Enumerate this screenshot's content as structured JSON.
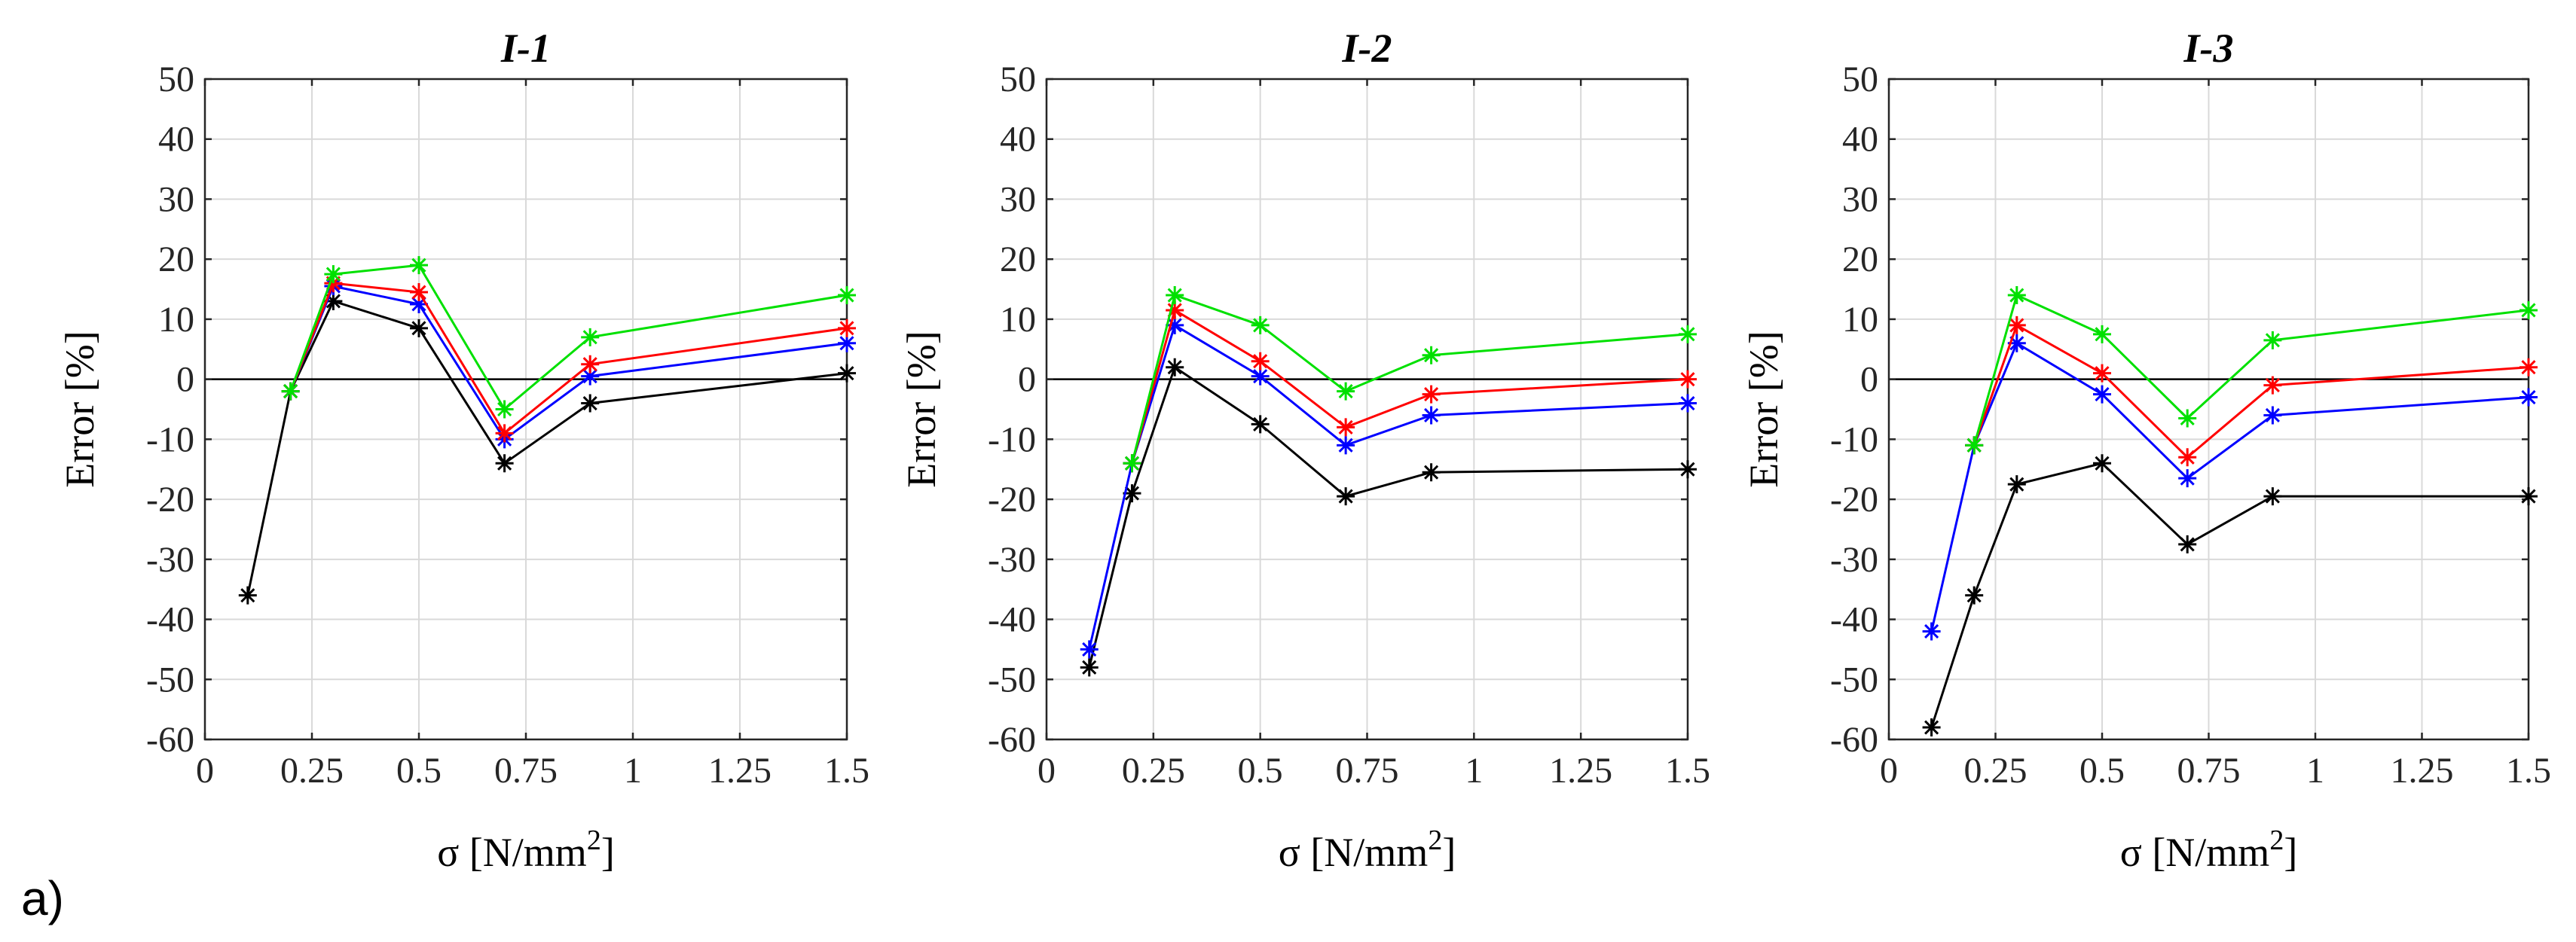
{
  "figure_label": "a)",
  "chart_data": [
    {
      "type": "line",
      "title": "I-1",
      "xlabel": "σ [N/mm",
      "xlabel_sup": "2",
      "xlabel_end": "]",
      "ylabel": "Error [%]",
      "xlim": [
        0,
        1.5
      ],
      "ylim": [
        -60,
        50
      ],
      "xticks": [
        0,
        0.25,
        0.5,
        0.75,
        1,
        1.25,
        1.5
      ],
      "xtick_labels": [
        "0",
        "0.25",
        "0.5",
        "0.75",
        "1",
        "1.25",
        "1.5"
      ],
      "yticks": [
        -60,
        -50,
        -40,
        -30,
        -20,
        -10,
        0,
        10,
        20,
        30,
        40,
        50
      ],
      "grid": true,
      "series": [
        {
          "name": "black",
          "color": "#000000",
          "x": [
            0.1,
            0.2,
            0.3,
            0.5,
            0.7,
            0.9,
            1.5
          ],
          "values": [
            -36,
            -2,
            13,
            8.5,
            -14,
            -4,
            1
          ]
        },
        {
          "name": "blue",
          "color": "#0000ff",
          "x": [
            0.2,
            0.3,
            0.5,
            0.7,
            0.9,
            1.5
          ],
          "values": [
            -2,
            15.5,
            12.5,
            -10,
            0.5,
            6
          ]
        },
        {
          "name": "red",
          "color": "#ff0000",
          "x": [
            0.2,
            0.3,
            0.5,
            0.7,
            0.9,
            1.5
          ],
          "values": [
            -2,
            16,
            14.5,
            -9,
            2.5,
            8.5
          ]
        },
        {
          "name": "green",
          "color": "#00e000",
          "x": [
            0.2,
            0.3,
            0.5,
            0.7,
            0.9,
            1.5
          ],
          "values": [
            -2,
            17.5,
            19,
            -5,
            7,
            14
          ]
        }
      ]
    },
    {
      "type": "line",
      "title": "I-2",
      "xlabel": "σ [N/mm",
      "xlabel_sup": "2",
      "xlabel_end": "]",
      "ylabel": "Error [%]",
      "xlim": [
        0,
        1.5
      ],
      "ylim": [
        -60,
        50
      ],
      "xticks": [
        0,
        0.25,
        0.5,
        0.75,
        1,
        1.25,
        1.5
      ],
      "xtick_labels": [
        "0",
        "0.25",
        "0.5",
        "0.75",
        "1",
        "1.25",
        "1.5"
      ],
      "yticks": [
        -60,
        -50,
        -40,
        -30,
        -20,
        -10,
        0,
        10,
        20,
        30,
        40,
        50
      ],
      "grid": true,
      "series": [
        {
          "name": "black",
          "color": "#000000",
          "x": [
            0.1,
            0.2,
            0.3,
            0.5,
            0.7,
            0.9,
            1.5
          ],
          "values": [
            -48,
            -19,
            2,
            -7.5,
            -19.5,
            -15.5,
            -15
          ]
        },
        {
          "name": "blue",
          "color": "#0000ff",
          "x": [
            0.1,
            0.2,
            0.3,
            0.5,
            0.7,
            0.9,
            1.5
          ],
          "values": [
            -45,
            -14,
            9,
            0.5,
            -11,
            -6,
            -4
          ]
        },
        {
          "name": "red",
          "color": "#ff0000",
          "x": [
            0.2,
            0.3,
            0.5,
            0.7,
            0.9,
            1.5
          ],
          "values": [
            -14,
            11.5,
            3,
            -8,
            -2.5,
            0
          ]
        },
        {
          "name": "green",
          "color": "#00e000",
          "x": [
            0.2,
            0.3,
            0.5,
            0.7,
            0.9,
            1.5
          ],
          "values": [
            -14,
            14,
            9,
            -2,
            4,
            7.5
          ]
        }
      ]
    },
    {
      "type": "line",
      "title": "I-3",
      "xlabel": "σ [N/mm",
      "xlabel_sup": "2",
      "xlabel_end": "]",
      "ylabel": "Error [%]",
      "xlim": [
        0,
        1.5
      ],
      "ylim": [
        -60,
        50
      ],
      "xticks": [
        0,
        0.25,
        0.5,
        0.75,
        1,
        1.25,
        1.5
      ],
      "xtick_labels": [
        "0",
        "0.25",
        "0.5",
        "0.75",
        "1",
        "1.25",
        "1.5"
      ],
      "yticks": [
        -60,
        -50,
        -40,
        -30,
        -20,
        -10,
        0,
        10,
        20,
        30,
        40,
        50
      ],
      "grid": true,
      "series": [
        {
          "name": "black",
          "color": "#000000",
          "x": [
            0.1,
            0.2,
            0.3,
            0.5,
            0.7,
            0.9,
            1.5
          ],
          "values": [
            -58,
            -36,
            -17.5,
            -14,
            -27.5,
            -19.5,
            -19.5
          ]
        },
        {
          "name": "blue",
          "color": "#0000ff",
          "x": [
            0.1,
            0.2,
            0.3,
            0.5,
            0.7,
            0.9,
            1.5
          ],
          "values": [
            -42,
            -11,
            6,
            -2.5,
            -16.5,
            -6,
            -3
          ]
        },
        {
          "name": "red",
          "color": "#ff0000",
          "x": [
            0.2,
            0.3,
            0.5,
            0.7,
            0.9,
            1.5
          ],
          "values": [
            -11,
            9,
            1,
            -13,
            -1,
            2
          ]
        },
        {
          "name": "green",
          "color": "#00e000",
          "x": [
            0.2,
            0.3,
            0.5,
            0.7,
            0.9,
            1.5
          ],
          "values": [
            -11,
            14,
            7.5,
            -6.5,
            6.5,
            11.5
          ]
        }
      ]
    }
  ]
}
